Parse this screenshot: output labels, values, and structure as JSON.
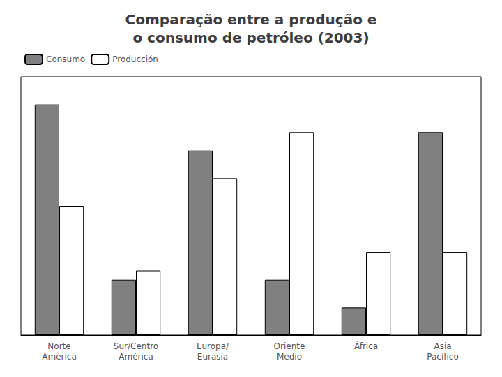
{
  "chart_data": {
    "type": "bar",
    "title": "Comparação entre a produção e\no consumo de petróleo (2003)",
    "categories": [
      "Norte\nAmérica",
      "Sur/Centro\nAmérica",
      "Europa/\nEurasia",
      "Oriente\nMedio",
      "África",
      "Asia\nPacífico"
    ],
    "series": [
      {
        "name": "Consumo",
        "color": "#808080",
        "values": [
          25,
          6,
          20,
          6,
          3,
          22
        ]
      },
      {
        "name": "Producción",
        "color": "#FFFFFF",
        "values": [
          14,
          7,
          17,
          22,
          9,
          9
        ]
      }
    ],
    "ylim": [
      0,
      28
    ],
    "grid": false,
    "legend": "upper left",
    "tick_labels": "x"
  }
}
